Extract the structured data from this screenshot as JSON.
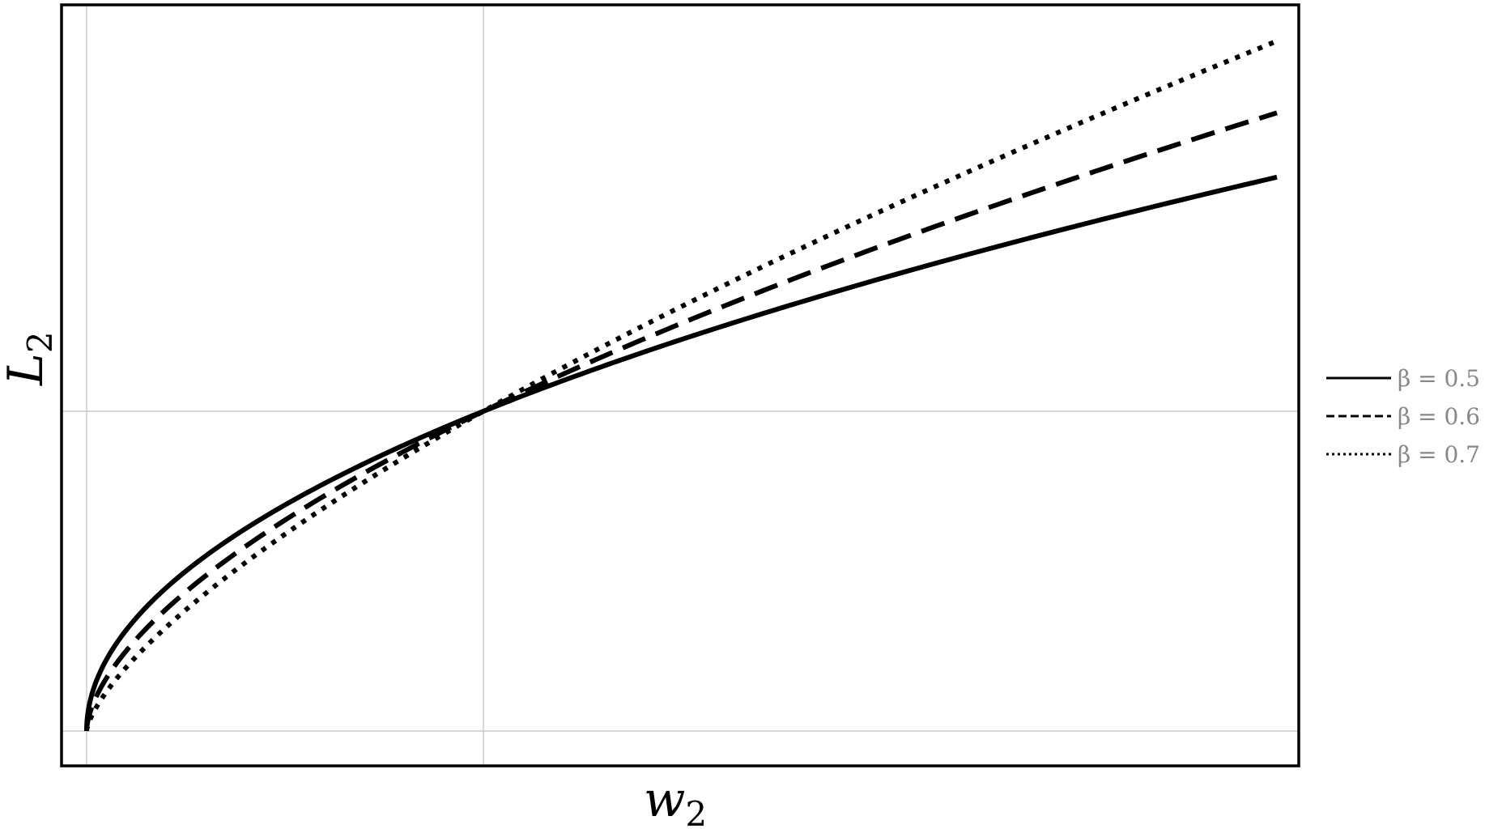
{
  "chart_data": {
    "type": "line",
    "xlabel": "w",
    "xlabel_sub": "2",
    "ylabel": "L",
    "ylabel_sub": "2",
    "xlim": [
      0,
      3
    ],
    "ylim": [
      -0.11,
      2.27
    ],
    "grid": {
      "x": [
        0,
        1
      ],
      "y": [
        0,
        1
      ]
    },
    "legend_position": "right",
    "series": [
      {
        "name": "β = 0.5",
        "beta": 0.5,
        "style": "solid",
        "x": [
          0,
          0.05,
          0.1,
          0.25,
          0.5,
          0.75,
          1,
          1.5,
          2,
          2.5,
          3
        ],
        "y": [
          0,
          0.224,
          0.316,
          0.5,
          0.707,
          0.866,
          1,
          1.225,
          1.414,
          1.581,
          1.732
        ]
      },
      {
        "name": "β = 0.6",
        "beta": 0.6,
        "style": "dashed",
        "x": [
          0,
          0.05,
          0.1,
          0.25,
          0.5,
          0.75,
          1,
          1.5,
          2,
          2.5,
          3
        ],
        "y": [
          0,
          0.166,
          0.251,
          0.435,
          0.66,
          0.841,
          1,
          1.275,
          1.516,
          1.733,
          1.933
        ]
      },
      {
        "name": "β = 0.7",
        "beta": 0.7,
        "style": "dotted",
        "x": [
          0,
          0.05,
          0.1,
          0.25,
          0.5,
          0.75,
          1,
          1.5,
          2,
          2.5,
          3
        ],
        "y": [
          0,
          0.123,
          0.2,
          0.379,
          0.616,
          0.818,
          1,
          1.328,
          1.625,
          1.899,
          2.158
        ]
      }
    ],
    "colors": {
      "series": "#000000",
      "grid": "#c0c0c0",
      "frame": "#000000",
      "legend_text": "#888888"
    }
  }
}
